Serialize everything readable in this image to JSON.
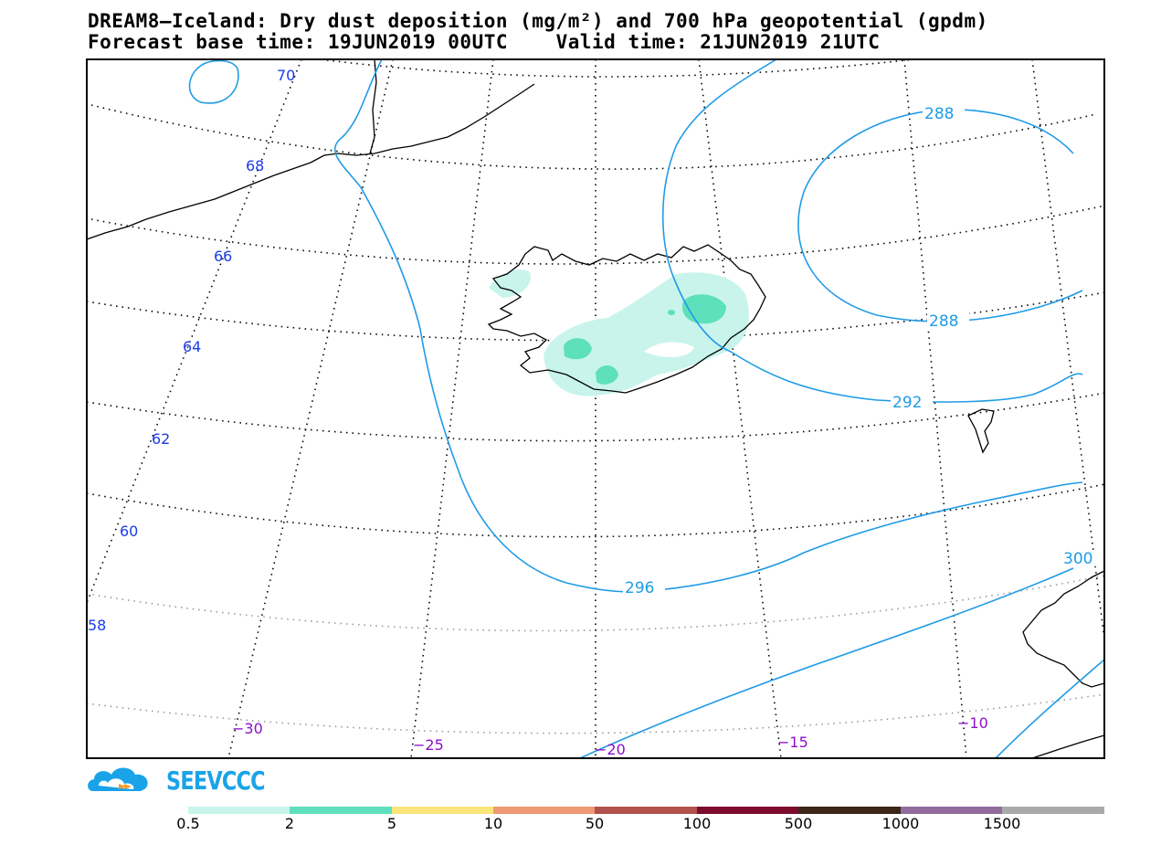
{
  "title": {
    "line1": "DREAM8—Iceland: Dry dust deposition (mg/m²) and 700 hPa geopotential (gpdm)",
    "line2": "Forecast base time: 19JUN2019 00UTC    Valid time: 21JUN2019 21UTC"
  },
  "latitude_labels": [
    "70",
    "68",
    "66",
    "64",
    "62",
    "60",
    "58"
  ],
  "longitude_labels": [
    "−30",
    "−25",
    "−20",
    "−15",
    "−10"
  ],
  "contour_labels": [
    "288",
    "288",
    "292",
    "296",
    "300"
  ],
  "logo": {
    "text": "SEEVCCC"
  },
  "colorbar": {
    "labels": [
      "0.5",
      "2",
      "5",
      "10",
      "50",
      "100",
      "500",
      "1000",
      "1500"
    ],
    "colors": [
      "#c8f4ec",
      "#5ee0bc",
      "#fae67a",
      "#ee9a74",
      "#b2524c",
      "#7c0b2e",
      "#3c2618",
      "#926c9c",
      "#aaaaaa"
    ]
  },
  "colors": {
    "contour": "#1f9be6",
    "lat_label": "#1a3ce8",
    "lon_label": "#8a10c8",
    "dust_low": "#c8f4ec",
    "dust_mid": "#5ee0bc"
  }
}
